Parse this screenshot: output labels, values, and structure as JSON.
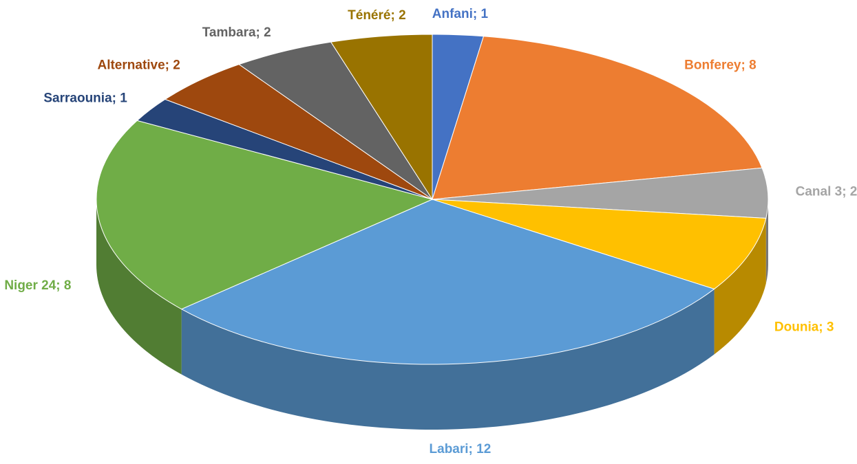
{
  "chart_data": {
    "type": "pie3d",
    "value_labels": [
      "Anfani; 1",
      "Bonferey; 8",
      "Canal 3; 2",
      "Dounia; 3",
      "Labari; 12",
      "Niger 24; 8",
      "Sarraounia; 1",
      "Alternative; 2",
      "Tambara; 2",
      "Ténéré; 2"
    ],
    "values": [
      1,
      8,
      2,
      3,
      12,
      8,
      1,
      2,
      2,
      2
    ],
    "colors": [
      "#4472c4",
      "#ed7d31",
      "#a5a5a5",
      "#ffc000",
      "#5b9bd5",
      "#70ad47",
      "#264478",
      "#9e480e",
      "#636363",
      "#997300"
    ]
  }
}
